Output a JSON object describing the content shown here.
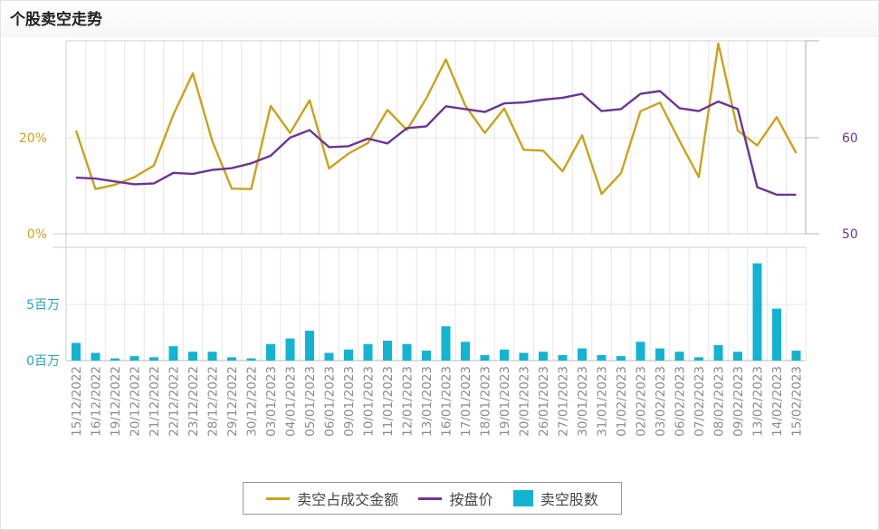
{
  "header": {
    "title": "个股卖空走势"
  },
  "colors": {
    "ratio": "#c9a319",
    "price": "#6a3594",
    "volume": "#13b4d2",
    "grid": "#e6e6e6"
  },
  "legend": {
    "ratio_label": "卖空占成交金额",
    "price_label": "按盘价",
    "volume_label": "卖空股数"
  },
  "axes": {
    "left_ticks": [
      "0%",
      "20%"
    ],
    "right_ticks": [
      "50",
      "60"
    ],
    "volume_ticks": [
      "0百万",
      "5百万"
    ]
  },
  "chart_data": {
    "type": "line",
    "categories": [
      "15/12/2022",
      "16/12/2022",
      "19/12/2022",
      "20/12/2022",
      "21/12/2022",
      "22/12/2022",
      "23/12/2022",
      "28/12/2022",
      "29/12/2022",
      "30/12/2022",
      "03/01/2023",
      "04/01/2023",
      "05/01/2023",
      "06/01/2023",
      "09/01/2023",
      "10/01/2023",
      "11/01/2023",
      "12/01/2023",
      "13/01/2023",
      "16/01/2023",
      "17/01/2023",
      "18/01/2023",
      "19/01/2023",
      "20/01/2023",
      "26/01/2023",
      "27/01/2023",
      "30/01/2023",
      "31/01/2023",
      "01/02/2023",
      "02/02/2023",
      "03/02/2023",
      "06/02/2023",
      "07/02/2023",
      "08/02/2023",
      "09/02/2023",
      "13/02/2023",
      "14/02/2023",
      "15/02/2023"
    ],
    "series": [
      {
        "name": "卖空占成交金额",
        "axis": "left",
        "unit": "%",
        "values": [
          21.5,
          9.3,
          10.2,
          11.8,
          14.2,
          24.8,
          33.4,
          19.3,
          9.4,
          9.3,
          26.6,
          21.0,
          27.8,
          13.6,
          16.7,
          18.9,
          25.8,
          21.6,
          28.2,
          36.3,
          26.7,
          21.0,
          26.1,
          17.5,
          17.3,
          13.0,
          20.5,
          8.3,
          12.6,
          25.5,
          27.3,
          19.4,
          11.8,
          39.6,
          21.5,
          18.4,
          24.3,
          16.8
        ]
      },
      {
        "name": "按盘价",
        "axis": "right",
        "values": [
          55.9,
          55.8,
          55.5,
          55.2,
          55.3,
          56.4,
          56.3,
          56.7,
          56.9,
          57.4,
          58.2,
          60.1,
          60.9,
          59.1,
          59.2,
          60.0,
          59.5,
          61.1,
          61.3,
          63.4,
          63.1,
          62.8,
          63.7,
          63.8,
          64.1,
          64.3,
          64.7,
          62.9,
          63.1,
          64.7,
          65.0,
          63.2,
          62.9,
          63.9,
          63.1,
          54.9,
          54.1,
          54.1
        ]
      },
      {
        "name": "卖空股数",
        "axis": "volume",
        "type": "bar",
        "unit": "百万",
        "values": [
          1.6,
          0.7,
          0.2,
          0.4,
          0.3,
          1.3,
          0.8,
          0.8,
          0.3,
          0.2,
          1.5,
          2.0,
          2.7,
          0.7,
          1.0,
          1.5,
          1.8,
          1.5,
          0.9,
          3.1,
          1.7,
          0.5,
          1.0,
          0.7,
          0.8,
          0.5,
          1.1,
          0.5,
          0.4,
          1.7,
          1.1,
          0.8,
          0.3,
          1.4,
          0.8,
          8.8,
          4.7,
          0.9
        ]
      }
    ],
    "left_ylim": [
      0,
      40
    ],
    "right_ylim": [
      50,
      70
    ],
    "volume_ylim": [
      0,
      9
    ],
    "grid": true,
    "legend_position": "bottom"
  }
}
